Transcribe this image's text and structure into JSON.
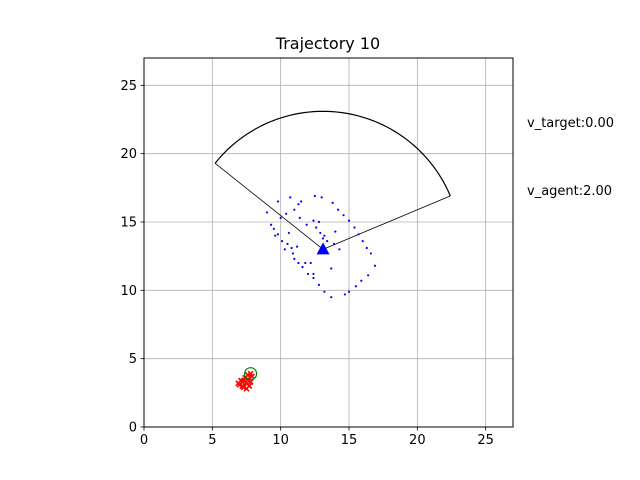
{
  "chart_data": {
    "type": "scatter",
    "title": "Trajectory 10",
    "xlabel": "",
    "ylabel": "",
    "xlim": [
      0,
      27
    ],
    "ylim": [
      0,
      27
    ],
    "xticks": [
      0,
      5,
      10,
      15,
      20,
      25
    ],
    "yticks": [
      0,
      5,
      10,
      15,
      20,
      25
    ],
    "grid": true,
    "annotations": {
      "v_target": "v_target:0.00",
      "v_agent": "v_agent:2.00"
    },
    "agent": {
      "x": 13.1,
      "y": 13.0,
      "color": "#0000ff",
      "marker": "triangle-up"
    },
    "target": {
      "x": 7.8,
      "y": 3.9,
      "color": "#008000",
      "marker": "circle-open"
    },
    "sensor_sector": {
      "center": [
        13.1,
        13.0
      ],
      "radius": 10.1,
      "edge_points": [
        [
          5.2,
          19.3
        ],
        [
          22.4,
          16.9
        ]
      ],
      "color": "#000000"
    },
    "series": [
      {
        "color": "#0000ff",
        "marker": "point",
        "points": [
          [
            9.8,
            16.5
          ],
          [
            10.7,
            16.8
          ],
          [
            11.3,
            16.3
          ],
          [
            11.5,
            16.5
          ],
          [
            12.5,
            16.9
          ],
          [
            13.0,
            16.8
          ],
          [
            13.8,
            16.4
          ],
          [
            14.2,
            15.9
          ],
          [
            14.6,
            15.5
          ],
          [
            15.0,
            15.1
          ],
          [
            15.4,
            14.6
          ],
          [
            15.7,
            14.1
          ],
          [
            16.0,
            13.6
          ],
          [
            16.3,
            13.1
          ],
          [
            16.6,
            12.7
          ],
          [
            16.9,
            11.8
          ],
          [
            16.4,
            11.1
          ],
          [
            15.9,
            10.7
          ],
          [
            15.5,
            10.3
          ],
          [
            15.0,
            9.9
          ],
          [
            14.7,
            9.7
          ],
          [
            13.7,
            9.5
          ],
          [
            13.2,
            9.9
          ],
          [
            12.8,
            10.4
          ],
          [
            12.4,
            10.9
          ],
          [
            12.0,
            11.2
          ],
          [
            11.6,
            11.7
          ],
          [
            11.3,
            12.0
          ],
          [
            11.0,
            12.3
          ],
          [
            10.9,
            12.7
          ],
          [
            10.8,
            13.1
          ],
          [
            10.5,
            13.4
          ],
          [
            10.1,
            13.6
          ],
          [
            9.8,
            14.1
          ],
          [
            9.5,
            14.5
          ],
          [
            9.3,
            14.8
          ],
          [
            9.0,
            15.7
          ],
          [
            10.0,
            15.3
          ],
          [
            10.4,
            15.6
          ],
          [
            11.0,
            15.9
          ],
          [
            11.4,
            15.3
          ],
          [
            11.9,
            14.8
          ],
          [
            12.4,
            15.1
          ],
          [
            12.8,
            15.0
          ],
          [
            12.6,
            14.6
          ],
          [
            13.2,
            14.0
          ],
          [
            13.4,
            13.6
          ],
          [
            13.9,
            13.4
          ],
          [
            14.3,
            13.0
          ],
          [
            13.7,
            11.6
          ],
          [
            12.2,
            12.0
          ],
          [
            12.4,
            11.2
          ],
          [
            11.2,
            13.2
          ],
          [
            10.3,
            13.0
          ],
          [
            11.8,
            12.0
          ],
          [
            13.1,
            13.8
          ],
          [
            14.0,
            14.3
          ],
          [
            12.9,
            14.2
          ],
          [
            10.6,
            14.2
          ],
          [
            9.6,
            14.0
          ]
        ]
      },
      {
        "color": "#ff0000",
        "marker": "x",
        "points": [
          [
            7.0,
            3.1
          ],
          [
            7.2,
            3.3
          ],
          [
            7.3,
            2.9
          ],
          [
            7.5,
            3.2
          ],
          [
            7.6,
            3.5
          ],
          [
            7.8,
            3.3
          ],
          [
            7.4,
            3.6
          ],
          [
            7.1,
            3.4
          ],
          [
            7.7,
            3.0
          ],
          [
            7.9,
            3.7
          ],
          [
            7.2,
            3.0
          ],
          [
            7.6,
            3.8
          ],
          [
            6.9,
            3.2
          ],
          [
            7.5,
            2.8
          ],
          [
            7.8,
            3.9
          ],
          [
            7.3,
            3.4
          ]
        ]
      }
    ]
  }
}
